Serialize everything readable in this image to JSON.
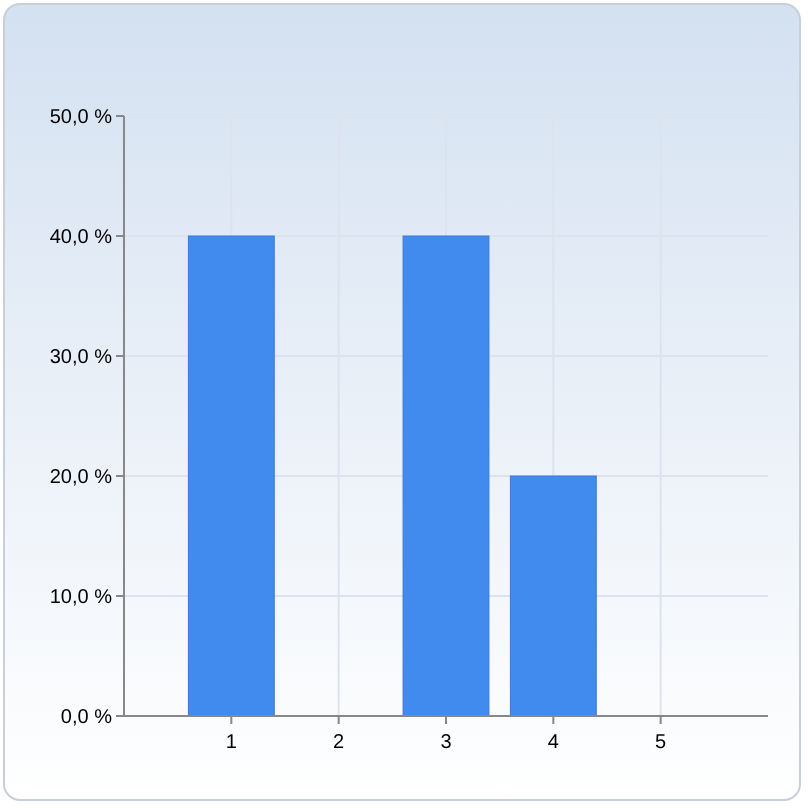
{
  "chart_data": {
    "type": "bar",
    "categories": [
      "1",
      "2",
      "3",
      "4",
      "5"
    ],
    "values": [
      40,
      0,
      40,
      20,
      0
    ],
    "color": "#428bee",
    "ylim": [
      0,
      50
    ],
    "yticks": [
      {
        "value": 0,
        "label": "0,0 %"
      },
      {
        "value": 10,
        "label": "10,0 %"
      },
      {
        "value": 20,
        "label": "20,0 %"
      },
      {
        "value": 30,
        "label": "30,0 %"
      },
      {
        "value": 40,
        "label": "40,0 %"
      },
      {
        "value": 50,
        "label": "50,0 %"
      }
    ],
    "grid": true
  }
}
